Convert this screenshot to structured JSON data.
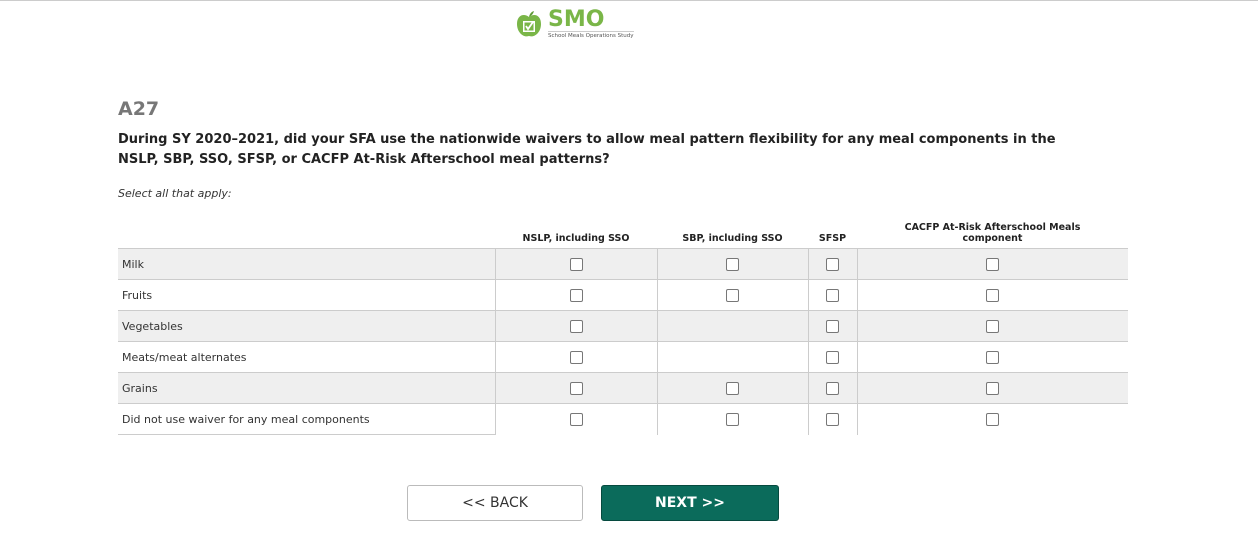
{
  "logo": {
    "title": "SMO",
    "subtitle": "School Meals Operations Study",
    "color": "#7ab648"
  },
  "question": {
    "id": "A27",
    "text": "During SY 2020–2021, did your SFA use the nationwide waivers to allow meal pattern flexibility for any meal components in the NSLP, SBP, SSO, SFSP, or CACFP At-Risk Afterschool meal patterns?",
    "instruction": "Select all that apply:"
  },
  "columns": [
    "NSLP, including SSO",
    "SBP, including SSO",
    "SFSP",
    "CACFP At-Risk Afterschool Meals component"
  ],
  "rows": [
    {
      "label": "Milk",
      "checkboxes": [
        true,
        true,
        true,
        true
      ]
    },
    {
      "label": "Fruits",
      "checkboxes": [
        true,
        true,
        true,
        true
      ]
    },
    {
      "label": "Vegetables",
      "checkboxes": [
        true,
        false,
        true,
        true
      ]
    },
    {
      "label": "Meats/meat alternates",
      "checkboxes": [
        true,
        false,
        true,
        true
      ]
    },
    {
      "label": "Grains",
      "checkboxes": [
        true,
        true,
        true,
        true
      ]
    },
    {
      "label": "Did not use waiver for any meal components",
      "checkboxes": [
        true,
        true,
        true,
        true
      ]
    }
  ],
  "buttons": {
    "back": "<< BACK",
    "next": "NEXT >>",
    "next_color": "#0b6b5b"
  }
}
